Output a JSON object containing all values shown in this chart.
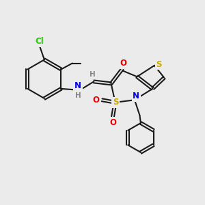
{
  "bg": "#ebebeb",
  "bond_color": "#1a1a1a",
  "lw": 1.5,
  "dbo": 0.065,
  "colors": {
    "H": "#888888",
    "N": "#0000ee",
    "O": "#ee0000",
    "S": "#ccaa00",
    "Cl": "#22cc00",
    "C": "#1a1a1a"
  },
  "fs": 8.0,
  "figsize": [
    3.0,
    3.0
  ],
  "dpi": 100
}
